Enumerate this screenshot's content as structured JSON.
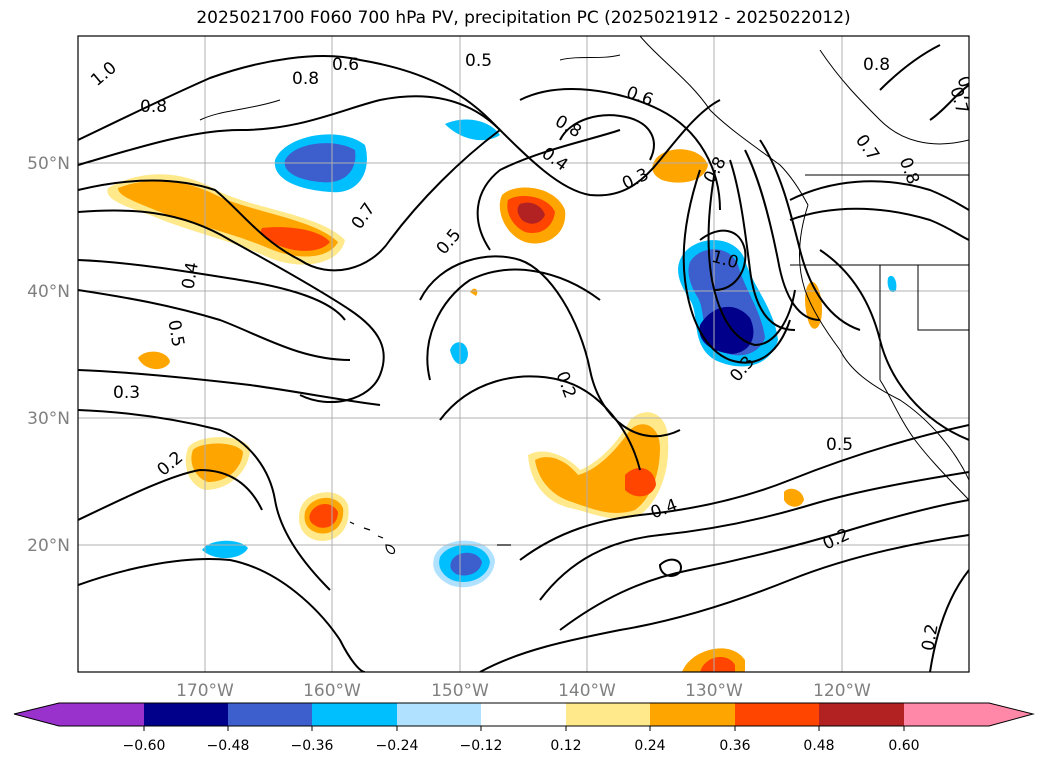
{
  "figure": {
    "title": "2025021700 F060 700 hPa PV, precipitation PC (2025021912 - 2025022012)"
  },
  "map": {
    "lat_labels": [
      "50°N",
      "40°N",
      "30°N",
      "20°N"
    ],
    "lon_labels": [
      "170°W",
      "160°W",
      "150°W",
      "140°W",
      "130°W",
      "120°W"
    ],
    "grid": true,
    "coastline": true,
    "extent": {
      "lon": [
        -180,
        -110
      ],
      "lat": [
        10,
        60
      ]
    }
  },
  "contours": {
    "variable": "700 hPa PV",
    "labels": [
      "1.0",
      "0.8",
      "0.6",
      "0.5",
      "0.8",
      "0.8",
      "0.7",
      "0.4",
      "0.5",
      "0.3",
      "0.2",
      "0.7",
      "0.5",
      "0.4",
      "0.6",
      "0.3",
      "0.8",
      "1.0",
      "0.3",
      "0.2",
      "0.4",
      "0.5",
      "0.2",
      "0.2",
      "0.8",
      "0.7",
      "0.7",
      "0.8"
    ]
  },
  "colorbar": {
    "tick_labels": [
      "−0.60",
      "−0.48",
      "−0.36",
      "−0.24",
      "−0.12",
      "0.12",
      "0.24",
      "0.36",
      "0.48",
      "0.60"
    ],
    "colors": [
      "#9932cc",
      "#00008b",
      "#3c5fcd",
      "#00bfff",
      "#b0e2ff",
      "#ffffff",
      "#ffe98a",
      "#ffa500",
      "#ff4500",
      "#b22222",
      "#ff88a8"
    ],
    "extend": "both"
  }
}
